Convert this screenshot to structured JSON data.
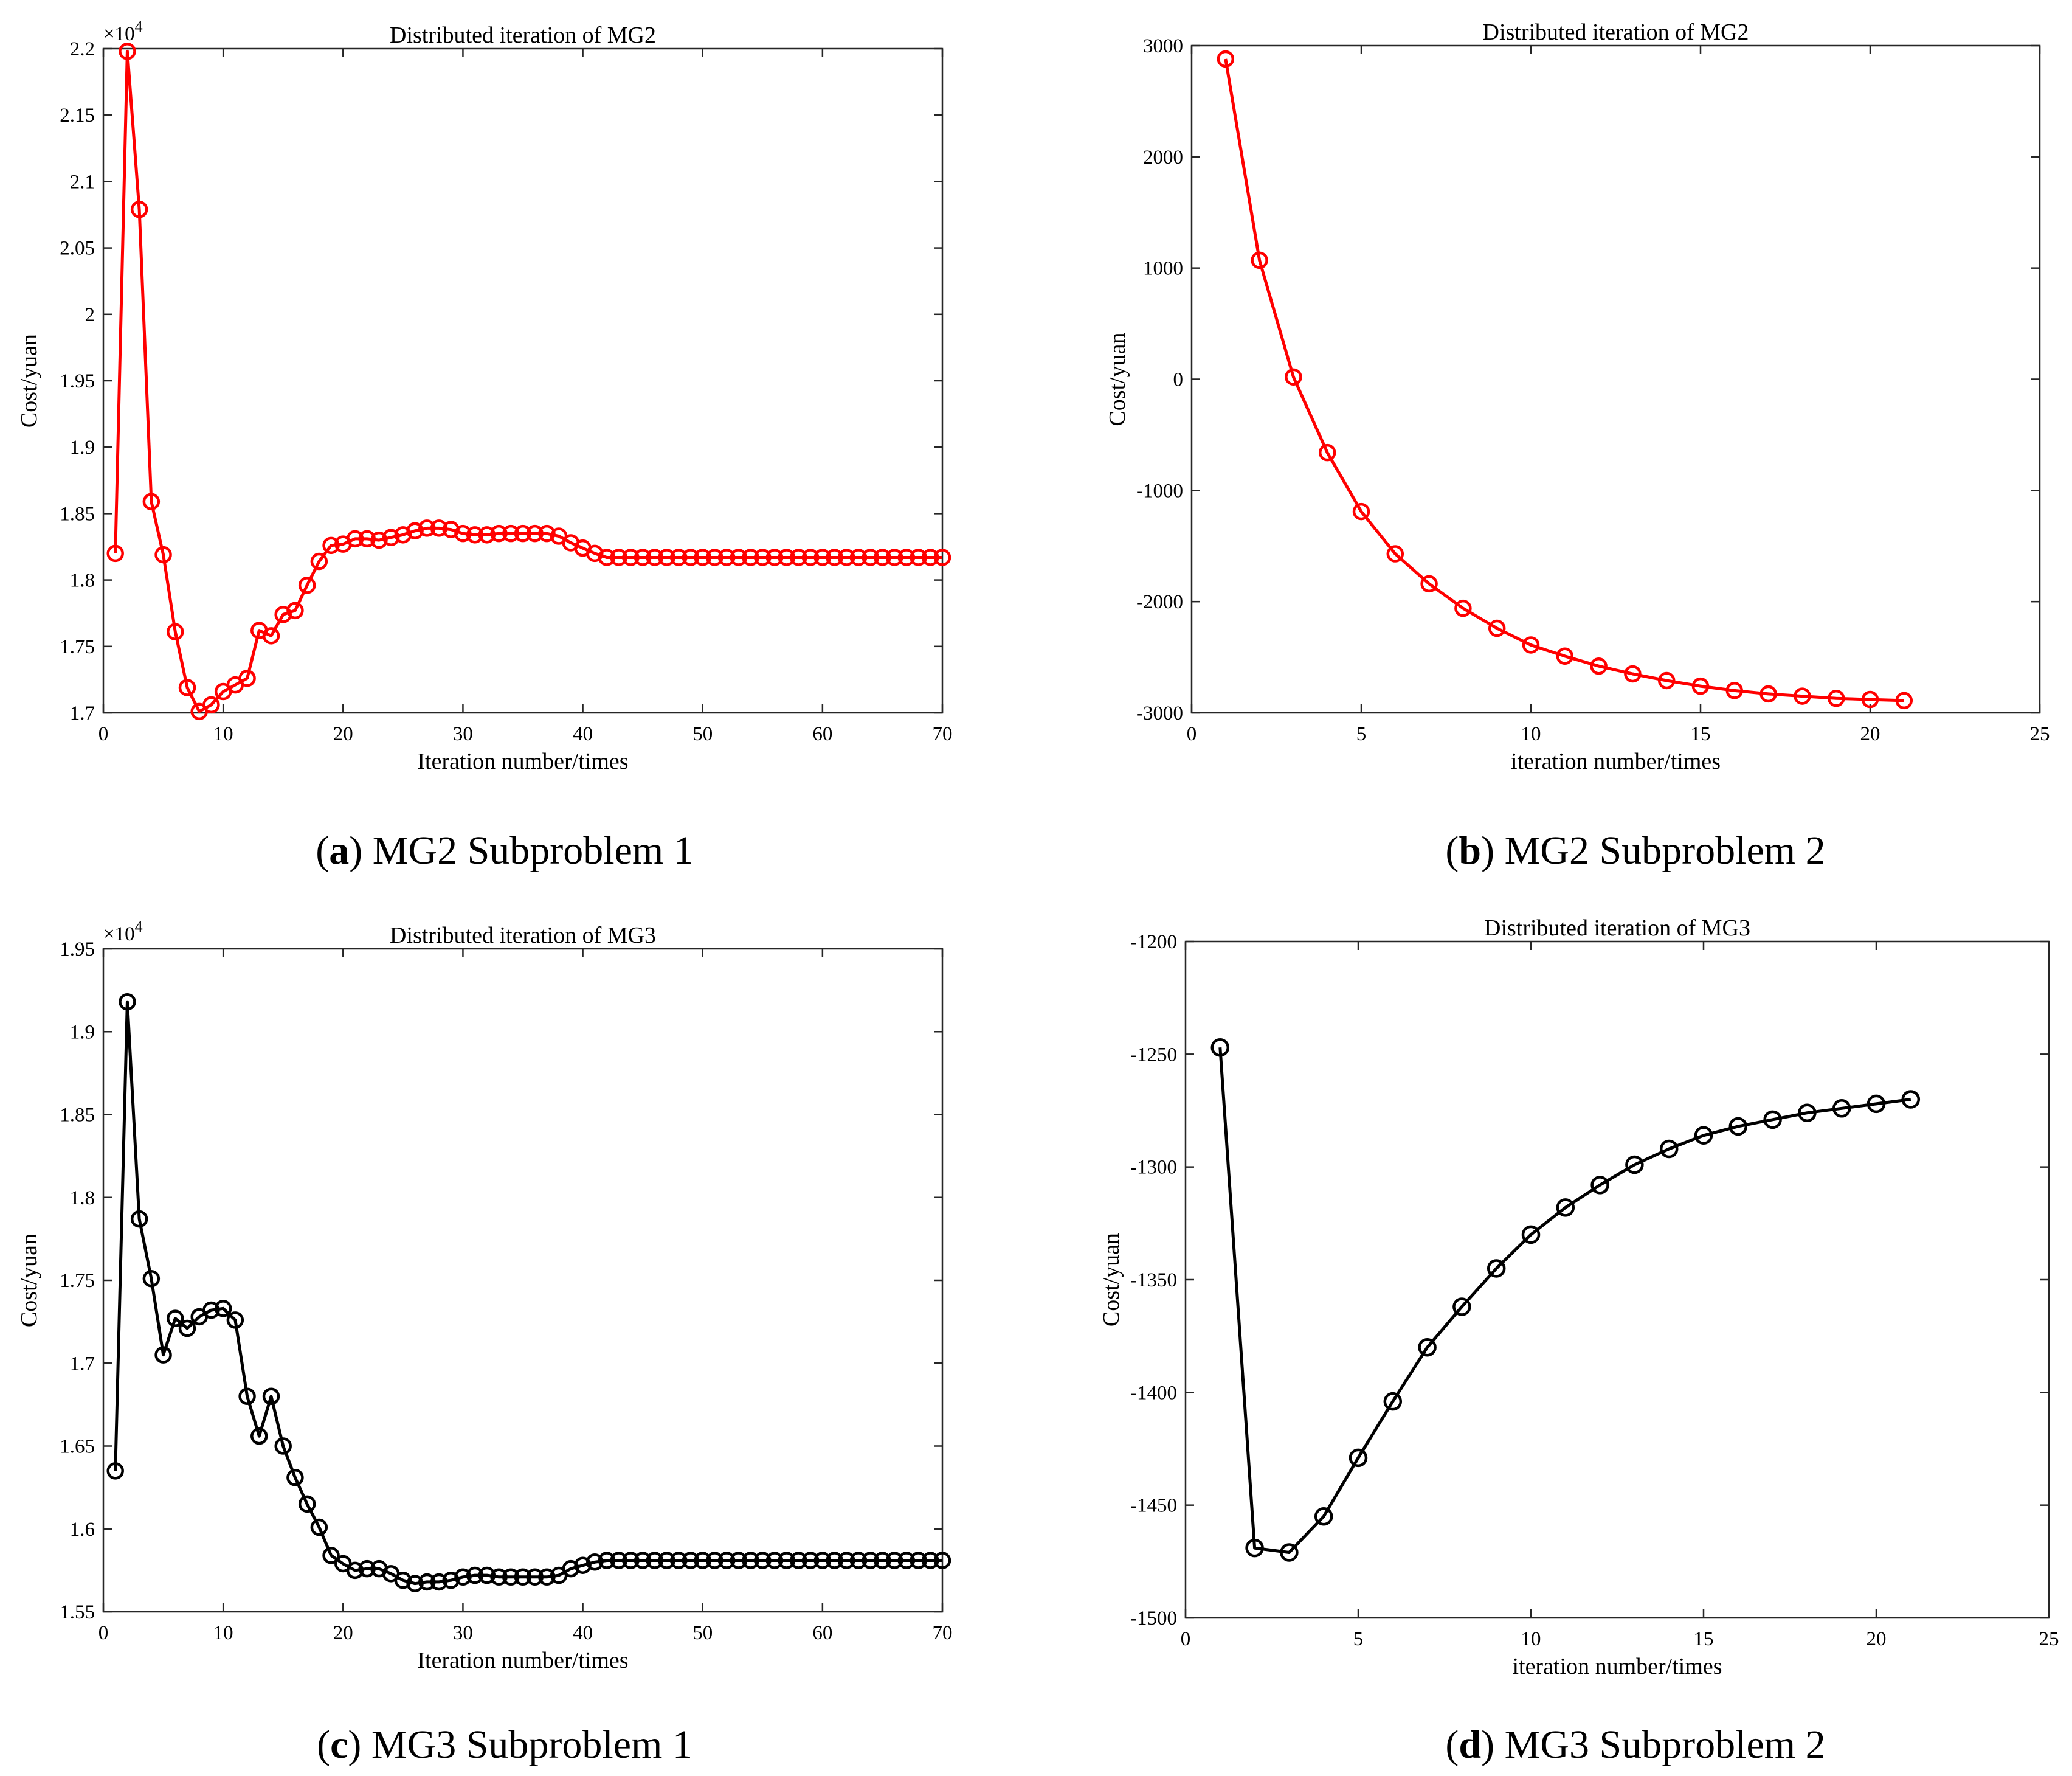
{
  "panels": [
    {
      "id": "a",
      "caption_letter": "a",
      "caption_text": "MG2 Subproblem 1",
      "chart_data": {
        "type": "line",
        "title": "Distributed iteration of MG2",
        "xlabel": "Iteration number/times",
        "ylabel": "Cost/yuan",
        "y_exponent_label": "×10",
        "y_exponent_power": "4",
        "xlim": [
          0,
          70
        ],
        "ylim": [
          17000,
          22000
        ],
        "x_ticks": [
          0,
          10,
          20,
          30,
          40,
          50,
          60,
          70
        ],
        "x_tick_labels": [
          "0",
          "10",
          "20",
          "30",
          "40",
          "50",
          "60",
          "70"
        ],
        "y_ticks": [
          17000,
          17500,
          18000,
          18500,
          19000,
          19500,
          20000,
          20500,
          21000,
          21500,
          22000
        ],
        "y_tick_labels": [
          "1.7",
          "1.75",
          "1.8",
          "1.85",
          "1.9",
          "1.95",
          "2",
          "2.05",
          "2.1",
          "2.15",
          "2.2"
        ],
        "grid": false,
        "color": "#ff0000",
        "marker": "circle",
        "series": [
          {
            "x": [
              1,
              2,
              3,
              4,
              5,
              6,
              7,
              8,
              9,
              10,
              11,
              12,
              13,
              14,
              15,
              16,
              17,
              18,
              19,
              20,
              21,
              22,
              23,
              24,
              25,
              26,
              27,
              28,
              29,
              30,
              31,
              32,
              33,
              34,
              35,
              36,
              37,
              38,
              39,
              40,
              41,
              42,
              43,
              44,
              45,
              46,
              47,
              48,
              49,
              50,
              51,
              52,
              53,
              54,
              55,
              56,
              57,
              58,
              59,
              60,
              61,
              62,
              63,
              64,
              65,
              66,
              67,
              68,
              69,
              70
            ],
            "values": [
              18200,
              21980,
              20790,
              18590,
              18190,
              17610,
              17190,
              17010,
              17060,
              17160,
              17210,
              17260,
              17620,
              17580,
              17740,
              17770,
              17960,
              18140,
              18260,
              18270,
              18310,
              18310,
              18300,
              18320,
              18340,
              18370,
              18390,
              18390,
              18380,
              18350,
              18340,
              18340,
              18350,
              18350,
              18350,
              18350,
              18350,
              18330,
              18280,
              18240,
              18200,
              18170,
              18170,
              18170,
              18170,
              18170,
              18170,
              18170,
              18170,
              18170,
              18170,
              18170,
              18170,
              18170,
              18170,
              18170,
              18170,
              18170,
              18170,
              18170,
              18170,
              18170,
              18170,
              18170,
              18170,
              18170,
              18170,
              18170,
              18170,
              18170
            ]
          }
        ]
      }
    },
    {
      "id": "b",
      "caption_letter": "b",
      "caption_text": "MG2 Subproblem 2",
      "chart_data": {
        "type": "line",
        "title": "Distributed iteration of MG2",
        "xlabel": "iteration number/times",
        "ylabel": "Cost/yuan",
        "xlim": [
          0,
          25
        ],
        "ylim": [
          -3000,
          3000
        ],
        "x_ticks": [
          0,
          5,
          10,
          15,
          20,
          25
        ],
        "x_tick_labels": [
          "0",
          "5",
          "10",
          "15",
          "20",
          "25"
        ],
        "y_ticks": [
          -3000,
          -2000,
          -1000,
          0,
          1000,
          2000,
          3000
        ],
        "y_tick_labels": [
          "-3000",
          "-2000",
          "-1000",
          "0",
          "1000",
          "2000",
          "3000"
        ],
        "grid": false,
        "color": "#ff0000",
        "marker": "circle",
        "series": [
          {
            "x": [
              1,
              2,
              3,
              4,
              5,
              6,
              7,
              8,
              9,
              10,
              11,
              12,
              13,
              14,
              15,
              16,
              17,
              18,
              19,
              20,
              21
            ],
            "values": [
              2880,
              1070,
              20,
              -660,
              -1190,
              -1570,
              -1840,
              -2060,
              -2240,
              -2390,
              -2490,
              -2580,
              -2650,
              -2710,
              -2760,
              -2800,
              -2830,
              -2850,
              -2870,
              -2880,
              -2890
            ]
          }
        ]
      }
    },
    {
      "id": "c",
      "caption_letter": "c",
      "caption_text": "MG3 Subproblem 1",
      "chart_data": {
        "type": "line",
        "title": "Distributed iteration of MG3",
        "xlabel": "Iteration number/times",
        "ylabel": "Cost/yuan",
        "y_exponent_label": "×10",
        "y_exponent_power": "4",
        "xlim": [
          0,
          70
        ],
        "ylim": [
          15500,
          19500
        ],
        "x_ticks": [
          0,
          10,
          20,
          30,
          40,
          50,
          60,
          70
        ],
        "x_tick_labels": [
          "0",
          "10",
          "20",
          "30",
          "40",
          "50",
          "60",
          "70"
        ],
        "y_ticks": [
          15500,
          16000,
          16500,
          17000,
          17500,
          18000,
          18500,
          19000,
          19500
        ],
        "y_tick_labels": [
          "1.55",
          "1.6",
          "1.65",
          "1.7",
          "1.75",
          "1.8",
          "1.85",
          "1.9",
          "1.95"
        ],
        "grid": false,
        "color": "#000000",
        "marker": "circle",
        "series": [
          {
            "x": [
              1,
              2,
              3,
              4,
              5,
              6,
              7,
              8,
              9,
              10,
              11,
              12,
              13,
              14,
              15,
              16,
              17,
              18,
              19,
              20,
              21,
              22,
              23,
              24,
              25,
              26,
              27,
              28,
              29,
              30,
              31,
              32,
              33,
              34,
              35,
              36,
              37,
              38,
              39,
              40,
              41,
              42,
              43,
              44,
              45,
              46,
              47,
              48,
              49,
              50,
              51,
              52,
              53,
              54,
              55,
              56,
              57,
              58,
              59,
              60,
              61,
              62,
              63,
              64,
              65,
              66,
              67,
              68,
              69,
              70
            ],
            "values": [
              16350,
              19180,
              17870,
              17510,
              17050,
              17270,
              17210,
              17280,
              17320,
              17330,
              17260,
              16800,
              16560,
              16800,
              16500,
              16310,
              16150,
              16010,
              15840,
              15790,
              15750,
              15760,
              15760,
              15730,
              15690,
              15670,
              15680,
              15680,
              15690,
              15710,
              15720,
              15720,
              15710,
              15710,
              15710,
              15710,
              15710,
              15720,
              15760,
              15780,
              15800,
              15810,
              15810,
              15810,
              15810,
              15810,
              15810,
              15810,
              15810,
              15810,
              15810,
              15810,
              15810,
              15810,
              15810,
              15810,
              15810,
              15810,
              15810,
              15810,
              15810,
              15810,
              15810,
              15810,
              15810,
              15810,
              15810,
              15810,
              15810,
              15810
            ]
          }
        ]
      }
    },
    {
      "id": "d",
      "caption_letter": "d",
      "caption_text": "MG3 Subproblem 2",
      "chart_data": {
        "type": "line",
        "title": "Distributed iteration of MG3",
        "xlabel": "iteration number/times",
        "ylabel": "Cost/yuan",
        "xlim": [
          0,
          25
        ],
        "ylim": [
          -1500,
          -1200
        ],
        "x_ticks": [
          0,
          5,
          10,
          15,
          20,
          25
        ],
        "x_tick_labels": [
          "0",
          "5",
          "10",
          "15",
          "20",
          "25"
        ],
        "y_ticks": [
          -1500,
          -1450,
          -1400,
          -1350,
          -1300,
          -1250,
          -1200
        ],
        "y_tick_labels": [
          "-1500",
          "-1450",
          "-1400",
          "-1350",
          "-1300",
          "-1250",
          "-1200"
        ],
        "grid": false,
        "color": "#000000",
        "marker": "circle",
        "series": [
          {
            "x": [
              1,
              2,
              3,
              4,
              5,
              6,
              7,
              8,
              9,
              10,
              11,
              12,
              13,
              14,
              15,
              16,
              17,
              18,
              19,
              20,
              21
            ],
            "values": [
              -1247,
              -1469,
              -1471,
              -1455,
              -1429,
              -1404,
              -1380,
              -1362,
              -1345,
              -1330,
              -1318,
              -1308,
              -1299,
              -1292,
              -1286,
              -1282,
              -1279,
              -1276,
              -1274,
              -1272,
              -1270
            ]
          }
        ]
      }
    }
  ]
}
